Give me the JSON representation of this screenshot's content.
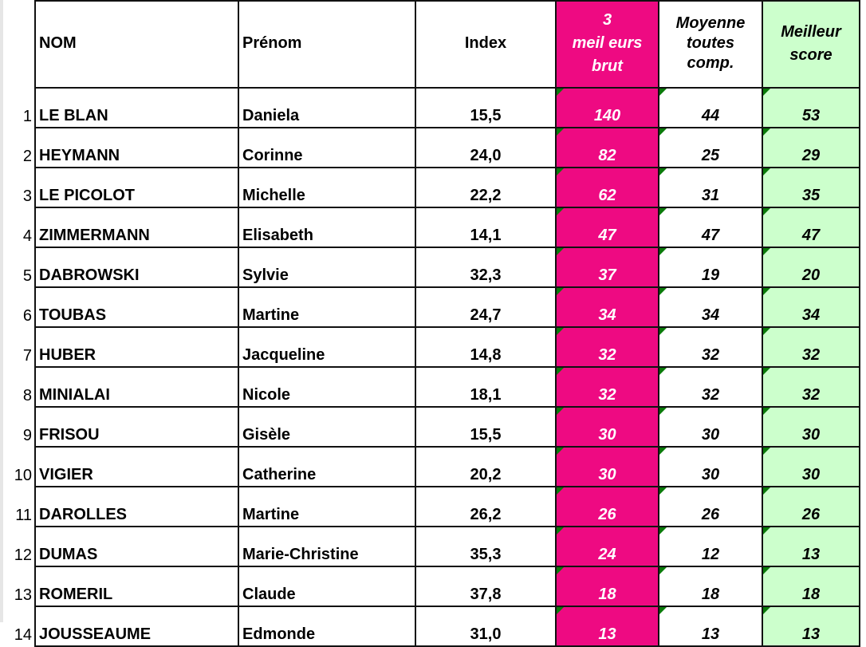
{
  "headers": {
    "nom": "NOM",
    "prenom": "Prénom",
    "index": "Index",
    "best3": [
      "3",
      "meil eurs",
      "brut"
    ],
    "moyenne": [
      "Moyenne",
      "toutes",
      "comp."
    ],
    "meilleur": [
      "Meilleur",
      "score"
    ]
  },
  "colors": {
    "best3_bg": "#ee0a82",
    "meilleur_bg": "#ccffcc",
    "comment_flag": "#0a7a0a"
  },
  "rows": [
    {
      "rank": "1",
      "nom": "LE BLAN",
      "prenom": "Daniela",
      "index": "15,5",
      "best3": "140",
      "moyenne": "44",
      "meilleur": "53"
    },
    {
      "rank": "2",
      "nom": "HEYMANN",
      "prenom": "Corinne",
      "index": "24,0",
      "best3": "82",
      "moyenne": "25",
      "meilleur": "29"
    },
    {
      "rank": "3",
      "nom": "LE PICOLOT",
      "prenom": "Michelle",
      "index": "22,2",
      "best3": "62",
      "moyenne": "31",
      "meilleur": "35"
    },
    {
      "rank": "4",
      "nom": "ZIMMERMANN",
      "prenom": "Elisabeth",
      "index": "14,1",
      "best3": "47",
      "moyenne": "47",
      "meilleur": "47"
    },
    {
      "rank": "5",
      "nom": "DABROWSKI",
      "prenom": "Sylvie",
      "index": "32,3",
      "best3": "37",
      "moyenne": "19",
      "meilleur": "20"
    },
    {
      "rank": "6",
      "nom": "TOUBAS",
      "prenom": "Martine",
      "index": "24,7",
      "best3": "34",
      "moyenne": "34",
      "meilleur": "34"
    },
    {
      "rank": "7",
      "nom": "HUBER",
      "prenom": "Jacqueline",
      "index": "14,8",
      "best3": "32",
      "moyenne": "32",
      "meilleur": "32"
    },
    {
      "rank": "8",
      "nom": "MINIALAI",
      "prenom": "Nicole",
      "index": "18,1",
      "best3": "32",
      "moyenne": "32",
      "meilleur": "32"
    },
    {
      "rank": "9",
      "nom": "FRISOU",
      "prenom": "Gisèle",
      "index": "15,5",
      "best3": "30",
      "moyenne": "30",
      "meilleur": "30"
    },
    {
      "rank": "10",
      "nom": "VIGIER",
      "prenom": "Catherine",
      "index": "20,2",
      "best3": "30",
      "moyenne": "30",
      "meilleur": "30"
    },
    {
      "rank": "11",
      "nom": "DAROLLES",
      "prenom": "Martine",
      "index": "26,2",
      "best3": "26",
      "moyenne": "26",
      "meilleur": "26"
    },
    {
      "rank": "12",
      "nom": "DUMAS",
      "prenom": "Marie-Christine",
      "index": "35,3",
      "best3": "24",
      "moyenne": "12",
      "meilleur": "13"
    },
    {
      "rank": "13",
      "nom": "ROMERIL",
      "prenom": "Claude",
      "index": "37,8",
      "best3": "18",
      "moyenne": "18",
      "meilleur": "18"
    },
    {
      "rank": "14",
      "nom": "JOUSSEAUME",
      "prenom": "Edmonde",
      "index": "31,0",
      "best3": "13",
      "moyenne": "13",
      "meilleur": "13"
    }
  ]
}
